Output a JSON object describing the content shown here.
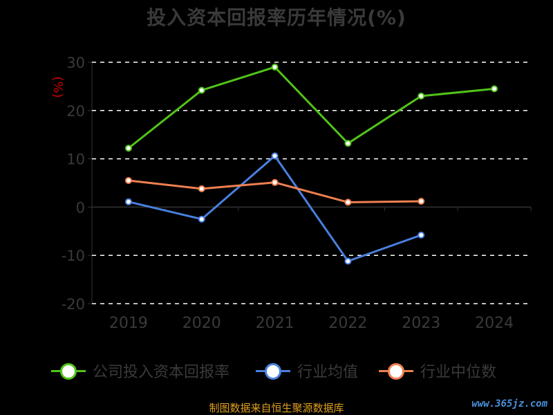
{
  "chart_data": {
    "type": "line",
    "title": "投入资本回报率历年情况(%)",
    "ylabel": "(%)",
    "categories": [
      "2019",
      "2020",
      "2021",
      "2022",
      "2023",
      "2024"
    ],
    "ylim": [
      -20,
      30
    ],
    "yticks": [
      -20,
      -10,
      0,
      10,
      20,
      30
    ],
    "grid": true,
    "legend_position": "bottom",
    "series": [
      {
        "name": "公司投入资本回报率",
        "color": "#52c41a",
        "values": [
          12.2,
          24.2,
          29.0,
          13.2,
          23.0,
          24.5
        ]
      },
      {
        "name": "行业均值",
        "color": "#4a80e0",
        "values": [
          1.1,
          -2.5,
          10.6,
          -11.2,
          -5.8,
          null
        ]
      },
      {
        "name": "行业中位数",
        "color": "#f08050",
        "values": [
          5.5,
          3.8,
          5.1,
          1.0,
          1.2,
          null
        ]
      }
    ]
  },
  "source": "制图数据来自恒生聚源数据库",
  "watermark": "www.365jz.com"
}
